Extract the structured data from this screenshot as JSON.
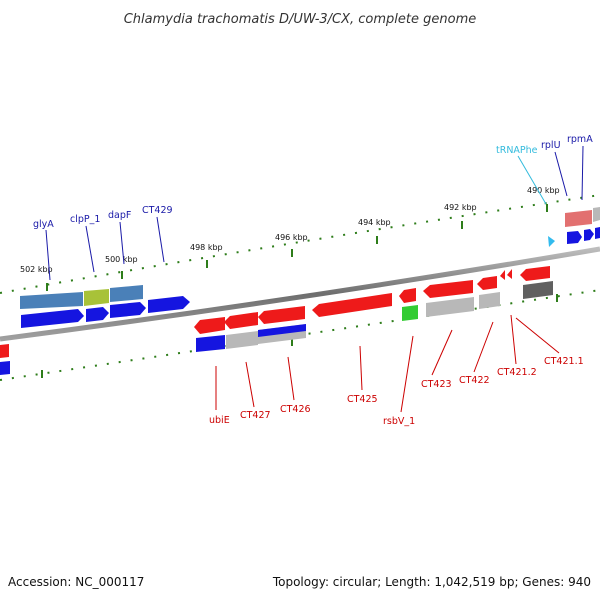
{
  "title": "Chlamydia trachomatis D/UW-3/CX, complete genome",
  "footer": {
    "accession": "Accession: NC_000117",
    "summary": "Topology: circular; Length: 1,042,519 bp; Genes: 940"
  },
  "colors": {
    "forward_label": "#1a1aa8",
    "reverse_label": "#cc0000",
    "trna_label": "#33bbdd",
    "tick": "#2e7d1a",
    "backbone": "#8c8c8c",
    "cds_forward": "#1515e0",
    "cds_reverse": "#ee1a1a",
    "gene_steel": "#4a80b8",
    "gene_gray": "#b8b8b8",
    "gene_dark": "#606060",
    "gene_olive": "#a8c238",
    "gene_green": "#33cc33",
    "gene_pink": "#e27070",
    "trna": "#33bbee"
  },
  "ticks": [
    "502 kbp",
    "500 kbp",
    "498 kbp",
    "496 kbp",
    "494 kbp",
    "492 kbp",
    "490 kbp"
  ],
  "labels_top": [
    "glyA",
    "clpP_1",
    "dapF",
    "CT429",
    "tRNAPhe",
    "rplU",
    "rpmA"
  ],
  "labels_bottom": [
    "ubiE",
    "CT427",
    "CT426",
    "CT425",
    "rsbV_1",
    "CT423",
    "CT422",
    "CT421.2",
    "CT421.1"
  ]
}
